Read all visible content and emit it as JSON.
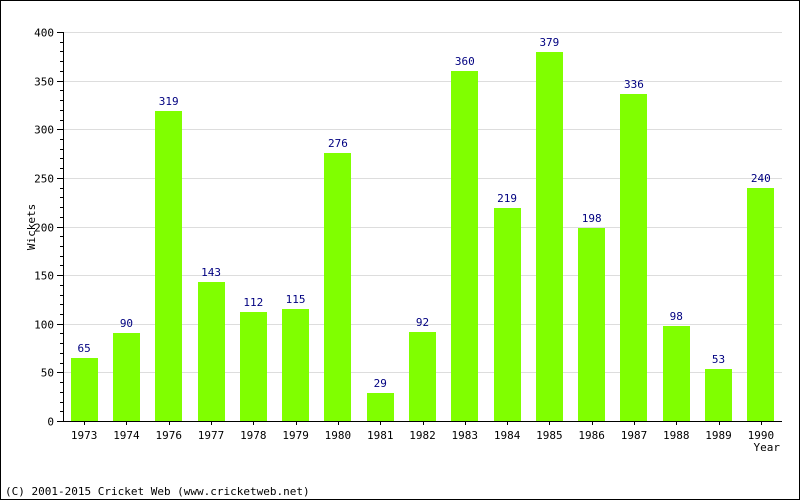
{
  "chart_data": {
    "type": "bar",
    "categories": [
      "1973",
      "1974",
      "1976",
      "1977",
      "1978",
      "1979",
      "1980",
      "1981",
      "1982",
      "1983",
      "1984",
      "1985",
      "1986",
      "1987",
      "1988",
      "1989",
      "1990"
    ],
    "values": [
      65,
      90,
      319,
      143,
      112,
      115,
      276,
      29,
      92,
      360,
      219,
      379,
      198,
      336,
      98,
      53,
      240
    ],
    "xlabel": "Year",
    "ylabel": "Wickets",
    "ylim": [
      0,
      400
    ],
    "yticks": [
      0,
      50,
      100,
      150,
      200,
      250,
      300,
      350,
      400
    ],
    "grid": true,
    "legend": "none",
    "bar_color": "#80ff00",
    "label_color": "#000080",
    "grid_color": "#dddddd"
  },
  "footer": {
    "copyright": "(C) 2001-2015 Cricket Web (www.cricketweb.net)"
  }
}
